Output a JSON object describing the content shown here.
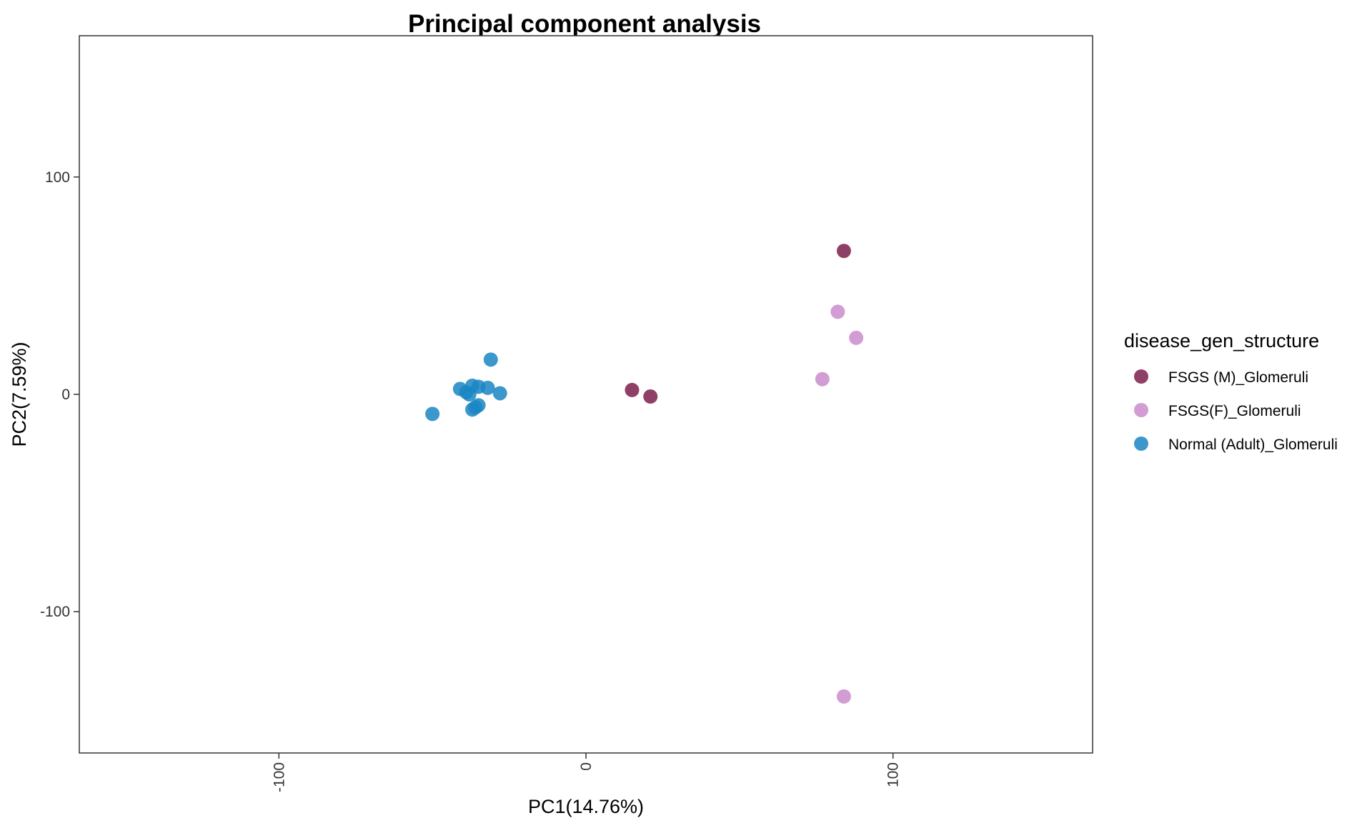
{
  "chart_data": {
    "type": "scatter",
    "title": "Principal component analysis",
    "xlabel": "PC1(14.76%)",
    "ylabel": "PC2(7.59%)",
    "xlim": [
      -165,
      165
    ],
    "ylim": [
      -165,
      165
    ],
    "x_ticks": [
      -100,
      0,
      100
    ],
    "y_ticks": [
      100,
      0,
      -100
    ],
    "x_tick_labels": [
      "-100",
      "0",
      "100"
    ],
    "y_tick_labels": [
      "100",
      "0",
      "-100"
    ],
    "grid": false,
    "legend": {
      "title": "disease_gen_structure",
      "position": "right"
    },
    "series": [
      {
        "name": "FSGS (M)_Glomeruli",
        "color": "#7b1f4b",
        "points": [
          {
            "x": 84,
            "y": 66
          },
          {
            "x": 15,
            "y": 2
          },
          {
            "x": 21,
            "y": -1
          }
        ]
      },
      {
        "name": "FSGS(F)_Glomeruli",
        "color": "#c98ccd",
        "points": [
          {
            "x": 82,
            "y": 38
          },
          {
            "x": 88,
            "y": 26
          },
          {
            "x": 77,
            "y": 7
          },
          {
            "x": 84,
            "y": -139
          }
        ]
      },
      {
        "name": "Normal (Adult)_Glomeruli",
        "color": "#1a86c3",
        "points": [
          {
            "x": -31,
            "y": 16
          },
          {
            "x": -41,
            "y": 2.5
          },
          {
            "x": -37,
            "y": 4
          },
          {
            "x": -35,
            "y": 3.5
          },
          {
            "x": -32,
            "y": 3
          },
          {
            "x": -39,
            "y": 1
          },
          {
            "x": -38,
            "y": 0
          },
          {
            "x": -28,
            "y": 0.5
          },
          {
            "x": -35,
            "y": -5
          },
          {
            "x": -36,
            "y": -6
          },
          {
            "x": -37,
            "y": -7
          },
          {
            "x": -50,
            "y": -9
          }
        ]
      }
    ]
  }
}
